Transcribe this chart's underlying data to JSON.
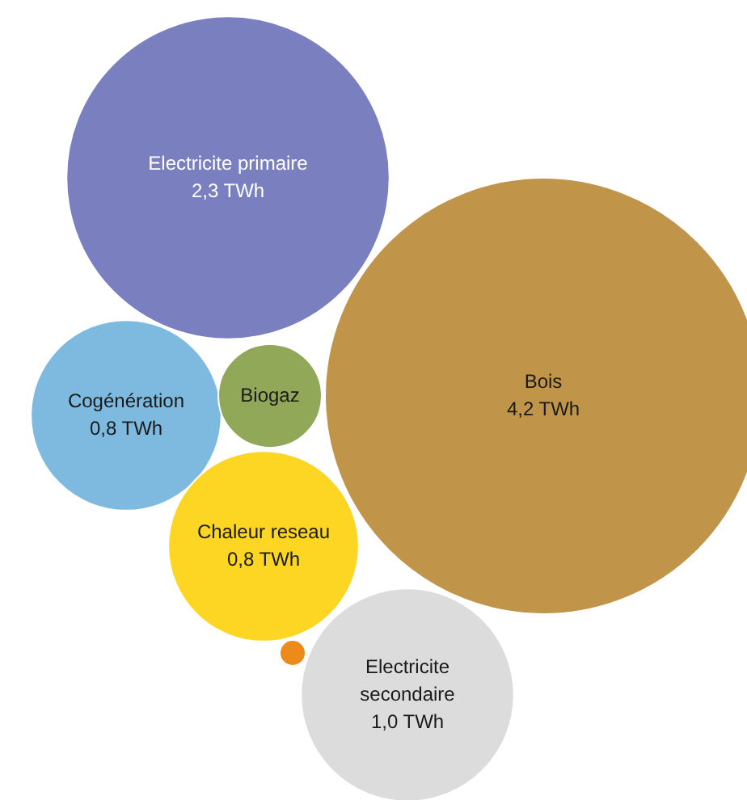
{
  "chart_data": {
    "type": "other",
    "categories": [
      "Electricite primaire",
      "Bois",
      "Cogénération",
      "Biogaz",
      "Chaleur reseau",
      "Electricite secondaire",
      null
    ],
    "values": [
      2.3,
      4.2,
      0.8,
      null,
      0.8,
      1.0,
      null
    ],
    "value_labels": [
      "2,3 TWh",
      "4,2 TWh",
      "0,8 TWh",
      null,
      "0,8 TWh",
      "1,0 TWh",
      null
    ],
    "colors": [
      "#7a7fc0",
      "#c0954a",
      "#7ebadf",
      "#90a858",
      "#fdd523",
      "#dcdcdc",
      "#ec8a1c"
    ]
  }
}
